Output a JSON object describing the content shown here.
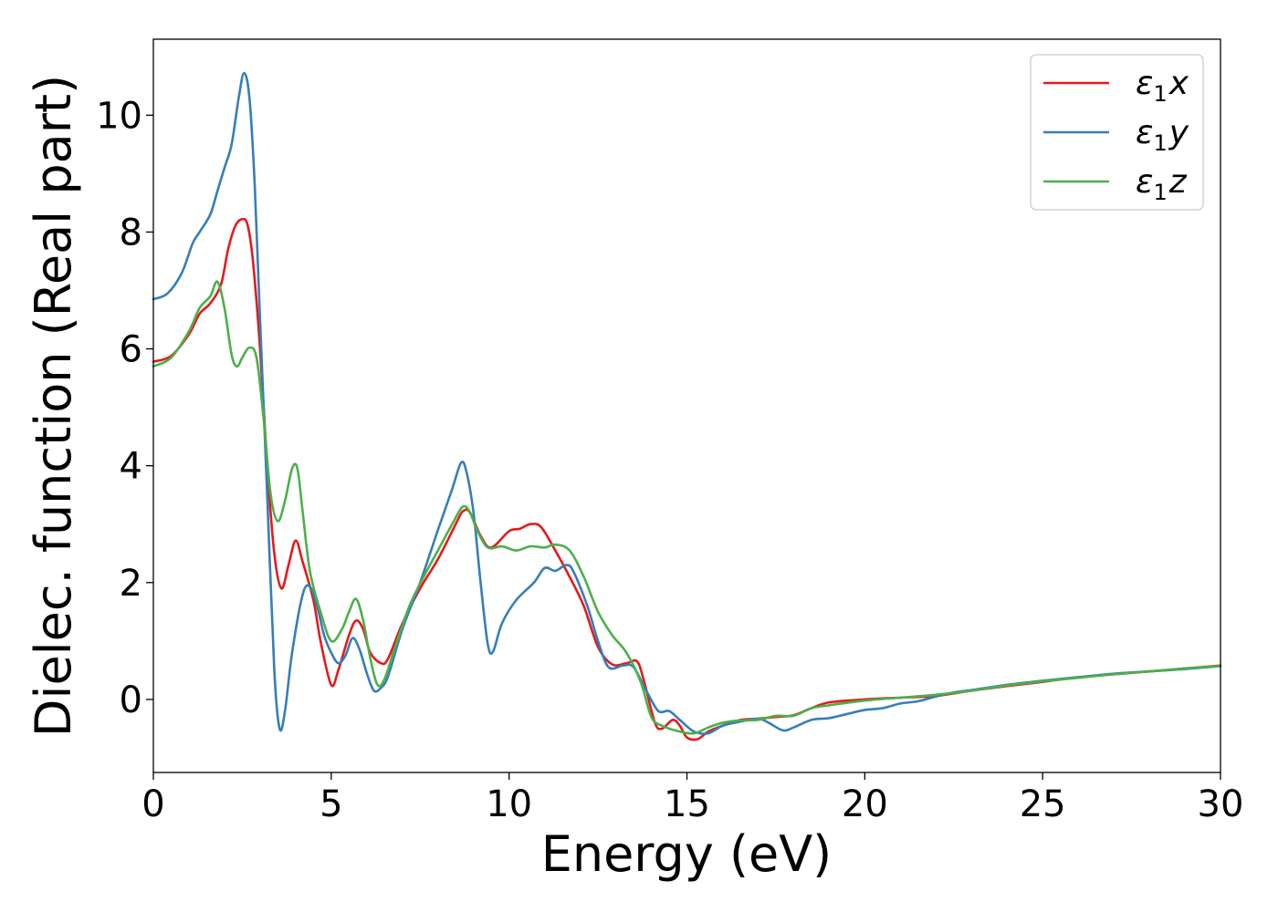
{
  "chart_data": {
    "type": "line",
    "xlabel": "Energy (eV)",
    "ylabel": "Dielec. function (Real part)",
    "xlim": [
      0,
      30
    ],
    "ylim": [
      -1.25,
      11.3
    ],
    "xticks": [
      0,
      5,
      10,
      15,
      20,
      25,
      30
    ],
    "yticks": [
      0,
      2,
      4,
      6,
      8,
      10
    ],
    "grid": false,
    "legend_position": "top-right",
    "series": [
      {
        "name": "ε₁x",
        "legend_base": "ε",
        "legend_sub": "1",
        "legend_var": "x",
        "color": "#e41a1c",
        "points": [
          [
            0,
            5.78
          ],
          [
            0.5,
            5.88
          ],
          [
            1.0,
            6.25
          ],
          [
            1.3,
            6.6
          ],
          [
            1.6,
            6.78
          ],
          [
            1.9,
            7.1
          ],
          [
            2.1,
            7.7
          ],
          [
            2.3,
            8.1
          ],
          [
            2.5,
            8.22
          ],
          [
            2.65,
            8.12
          ],
          [
            2.8,
            7.5
          ],
          [
            3.0,
            6.0
          ],
          [
            3.2,
            4.0
          ],
          [
            3.4,
            2.5
          ],
          [
            3.6,
            1.9
          ],
          [
            3.8,
            2.3
          ],
          [
            4.0,
            2.72
          ],
          [
            4.2,
            2.35
          ],
          [
            4.5,
            1.7
          ],
          [
            4.7,
            1.0
          ],
          [
            5.0,
            0.25
          ],
          [
            5.2,
            0.5
          ],
          [
            5.5,
            1.1
          ],
          [
            5.7,
            1.35
          ],
          [
            5.9,
            1.2
          ],
          [
            6.1,
            0.8
          ],
          [
            6.4,
            0.62
          ],
          [
            6.6,
            0.7
          ],
          [
            7.0,
            1.3
          ],
          [
            7.5,
            1.9
          ],
          [
            8.0,
            2.4
          ],
          [
            8.5,
            3.0
          ],
          [
            8.7,
            3.22
          ],
          [
            8.9,
            3.2
          ],
          [
            9.2,
            2.8
          ],
          [
            9.5,
            2.6
          ],
          [
            10.0,
            2.88
          ],
          [
            10.3,
            2.92
          ],
          [
            10.6,
            3.0
          ],
          [
            10.9,
            2.95
          ],
          [
            11.3,
            2.55
          ],
          [
            11.7,
            2.1
          ],
          [
            12.1,
            1.6
          ],
          [
            12.5,
            0.9
          ],
          [
            12.9,
            0.6
          ],
          [
            13.3,
            0.62
          ],
          [
            13.6,
            0.65
          ],
          [
            13.8,
            0.3
          ],
          [
            14.1,
            -0.4
          ],
          [
            14.3,
            -0.5
          ],
          [
            14.6,
            -0.35
          ],
          [
            14.8,
            -0.45
          ],
          [
            15.0,
            -0.65
          ],
          [
            15.3,
            -0.68
          ],
          [
            15.6,
            -0.55
          ],
          [
            16.0,
            -0.45
          ],
          [
            16.5,
            -0.35
          ],
          [
            17.0,
            -0.33
          ],
          [
            17.5,
            -0.3
          ],
          [
            18.0,
            -0.27
          ],
          [
            18.5,
            -0.15
          ],
          [
            19.0,
            -0.05
          ],
          [
            20.0,
            0.0
          ],
          [
            21.0,
            0.03
          ],
          [
            22.0,
            0.06
          ],
          [
            23.0,
            0.15
          ],
          [
            24.0,
            0.23
          ],
          [
            25.0,
            0.3
          ],
          [
            26.0,
            0.38
          ],
          [
            27.0,
            0.43
          ],
          [
            28.0,
            0.48
          ],
          [
            29.0,
            0.53
          ],
          [
            30.0,
            0.58
          ]
        ]
      },
      {
        "name": "ε₁y",
        "legend_base": "ε",
        "legend_sub": "1",
        "legend_var": "y",
        "color": "#377eb8",
        "points": [
          [
            0,
            6.85
          ],
          [
            0.4,
            6.95
          ],
          [
            0.8,
            7.3
          ],
          [
            1.1,
            7.8
          ],
          [
            1.3,
            8.0
          ],
          [
            1.6,
            8.3
          ],
          [
            1.8,
            8.7
          ],
          [
            2.0,
            9.1
          ],
          [
            2.2,
            9.5
          ],
          [
            2.4,
            10.3
          ],
          [
            2.55,
            10.72
          ],
          [
            2.7,
            10.3
          ],
          [
            2.85,
            8.8
          ],
          [
            3.0,
            6.5
          ],
          [
            3.2,
            3.5
          ],
          [
            3.4,
            0.5
          ],
          [
            3.55,
            -0.5
          ],
          [
            3.7,
            -0.2
          ],
          [
            3.9,
            0.8
          ],
          [
            4.2,
            1.8
          ],
          [
            4.4,
            1.93
          ],
          [
            4.6,
            1.6
          ],
          [
            4.8,
            1.1
          ],
          [
            5.0,
            0.8
          ],
          [
            5.2,
            0.62
          ],
          [
            5.4,
            0.75
          ],
          [
            5.6,
            1.05
          ],
          [
            5.8,
            0.85
          ],
          [
            6.0,
            0.45
          ],
          [
            6.2,
            0.15
          ],
          [
            6.4,
            0.2
          ],
          [
            6.6,
            0.4
          ],
          [
            7.0,
            1.2
          ],
          [
            7.5,
            2.0
          ],
          [
            8.0,
            2.9
          ],
          [
            8.4,
            3.6
          ],
          [
            8.65,
            4.05
          ],
          [
            8.8,
            3.9
          ],
          [
            9.0,
            3.2
          ],
          [
            9.2,
            2.0
          ],
          [
            9.4,
            0.95
          ],
          [
            9.55,
            0.82
          ],
          [
            9.8,
            1.3
          ],
          [
            10.2,
            1.7
          ],
          [
            10.7,
            2.0
          ],
          [
            11.0,
            2.25
          ],
          [
            11.3,
            2.2
          ],
          [
            11.6,
            2.3
          ],
          [
            11.8,
            2.2
          ],
          [
            12.2,
            1.6
          ],
          [
            12.5,
            1.0
          ],
          [
            12.8,
            0.55
          ],
          [
            13.2,
            0.58
          ],
          [
            13.5,
            0.55
          ],
          [
            13.9,
            0.1
          ],
          [
            14.2,
            -0.2
          ],
          [
            14.5,
            -0.2
          ],
          [
            14.8,
            -0.35
          ],
          [
            15.2,
            -0.55
          ],
          [
            15.6,
            -0.58
          ],
          [
            16.0,
            -0.45
          ],
          [
            16.5,
            -0.38
          ],
          [
            17.0,
            -0.33
          ],
          [
            17.3,
            -0.4
          ],
          [
            17.7,
            -0.53
          ],
          [
            18.0,
            -0.48
          ],
          [
            18.5,
            -0.35
          ],
          [
            19.0,
            -0.32
          ],
          [
            19.5,
            -0.25
          ],
          [
            20.0,
            -0.18
          ],
          [
            20.5,
            -0.15
          ],
          [
            21.0,
            -0.07
          ],
          [
            21.5,
            -0.03
          ],
          [
            22.0,
            0.05
          ],
          [
            22.5,
            0.12
          ],
          [
            23.0,
            0.16
          ],
          [
            24.0,
            0.25
          ],
          [
            25.0,
            0.32
          ],
          [
            26.0,
            0.38
          ],
          [
            27.0,
            0.44
          ],
          [
            28.0,
            0.48
          ],
          [
            29.0,
            0.52
          ],
          [
            30.0,
            0.57
          ]
        ]
      },
      {
        "name": "ε₁z",
        "legend_base": "ε",
        "legend_sub": "1",
        "legend_var": "z",
        "color": "#4daf4a",
        "points": [
          [
            0,
            5.7
          ],
          [
            0.5,
            5.85
          ],
          [
            1.0,
            6.3
          ],
          [
            1.3,
            6.7
          ],
          [
            1.6,
            6.9
          ],
          [
            1.8,
            7.15
          ],
          [
            2.0,
            6.7
          ],
          [
            2.2,
            5.9
          ],
          [
            2.35,
            5.7
          ],
          [
            2.5,
            5.85
          ],
          [
            2.7,
            6.02
          ],
          [
            2.9,
            5.85
          ],
          [
            3.1,
            4.8
          ],
          [
            3.3,
            3.5
          ],
          [
            3.5,
            3.05
          ],
          [
            3.7,
            3.4
          ],
          [
            3.9,
            3.95
          ],
          [
            4.05,
            3.95
          ],
          [
            4.2,
            3.2
          ],
          [
            4.4,
            2.2
          ],
          [
            4.7,
            1.5
          ],
          [
            5.0,
            1.0
          ],
          [
            5.3,
            1.2
          ],
          [
            5.5,
            1.5
          ],
          [
            5.7,
            1.72
          ],
          [
            5.9,
            1.35
          ],
          [
            6.1,
            0.7
          ],
          [
            6.3,
            0.25
          ],
          [
            6.5,
            0.35
          ],
          [
            6.8,
            0.9
          ],
          [
            7.2,
            1.6
          ],
          [
            7.6,
            2.1
          ],
          [
            8.0,
            2.55
          ],
          [
            8.4,
            3.0
          ],
          [
            8.7,
            3.3
          ],
          [
            8.9,
            3.2
          ],
          [
            9.1,
            2.9
          ],
          [
            9.4,
            2.6
          ],
          [
            9.8,
            2.62
          ],
          [
            10.2,
            2.55
          ],
          [
            10.6,
            2.62
          ],
          [
            11.0,
            2.6
          ],
          [
            11.3,
            2.65
          ],
          [
            11.7,
            2.55
          ],
          [
            12.1,
            2.1
          ],
          [
            12.5,
            1.5
          ],
          [
            12.9,
            1.1
          ],
          [
            13.3,
            0.8
          ],
          [
            13.7,
            0.3
          ],
          [
            14.0,
            -0.3
          ],
          [
            14.3,
            -0.45
          ],
          [
            14.8,
            -0.55
          ],
          [
            15.2,
            -0.58
          ],
          [
            15.6,
            -0.48
          ],
          [
            16.0,
            -0.4
          ],
          [
            16.5,
            -0.36
          ],
          [
            17.0,
            -0.35
          ],
          [
            17.5,
            -0.28
          ],
          [
            18.0,
            -0.28
          ],
          [
            18.5,
            -0.15
          ],
          [
            19.0,
            -0.1
          ],
          [
            20.0,
            -0.02
          ],
          [
            21.0,
            0.03
          ],
          [
            22.0,
            0.08
          ],
          [
            23.0,
            0.15
          ],
          [
            24.0,
            0.24
          ],
          [
            25.0,
            0.31
          ],
          [
            26.0,
            0.37
          ],
          [
            27.0,
            0.43
          ],
          [
            28.0,
            0.48
          ],
          [
            29.0,
            0.53
          ],
          [
            30.0,
            0.57
          ]
        ]
      }
    ]
  }
}
